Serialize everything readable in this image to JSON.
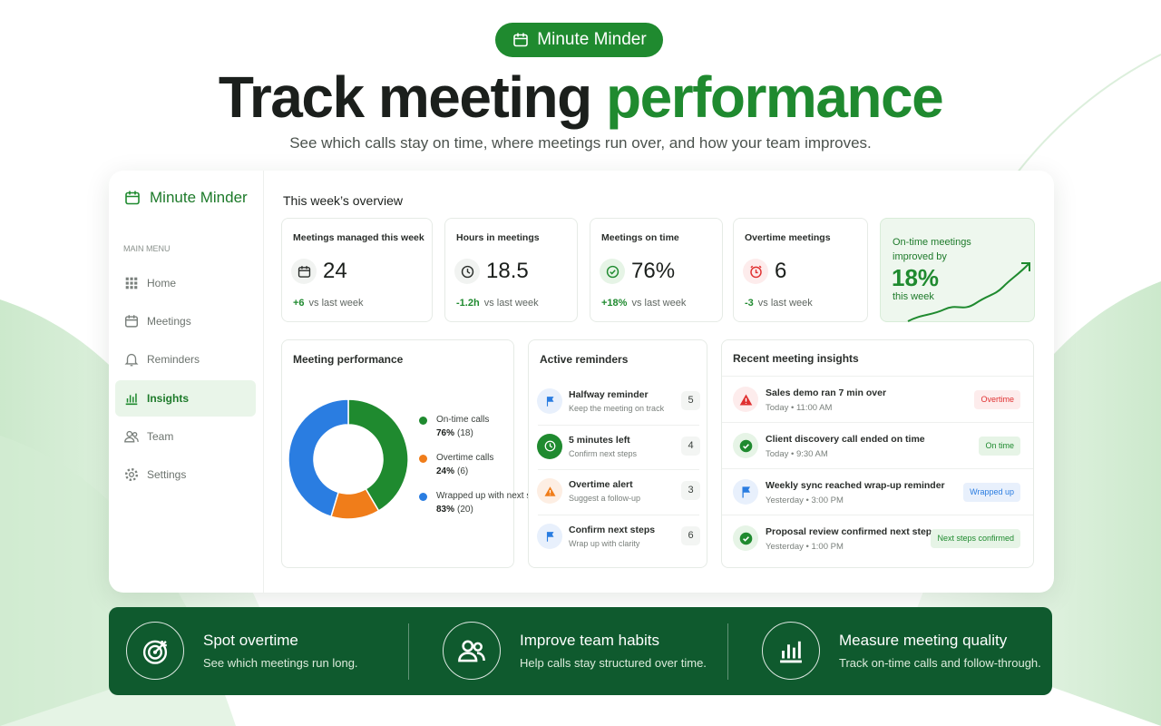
{
  "hero": {
    "brand": "Minute Minder",
    "title_start": "Track meeting",
    "title_highlight": "performance",
    "subtitle": "See which calls stay on time, where meetings run over, and how your team improves."
  },
  "sidebar": {
    "brand": "Minute Minder",
    "section": "MAIN MENU",
    "items": [
      "Home",
      "Meetings",
      "Reminders",
      "Insights",
      "Team",
      "Settings"
    ],
    "active": 3
  },
  "overview": {
    "title": "This week’s overview",
    "cards": [
      {
        "label": "Meetings managed this week",
        "value": 24,
        "change": "+6",
        "compare": "vs last week",
        "icon": "calendar"
      },
      {
        "label": "Hours in meetings",
        "value": 18.5,
        "change": "-1.2h",
        "compare": "vs last week",
        "icon": "clock"
      },
      {
        "label": "Meetings on time",
        "value": "76%",
        "change": "+18%",
        "compare": "vs last week",
        "icon": "check"
      },
      {
        "label": "Overtime meetings",
        "value": 6,
        "change": "-3",
        "compare": "vs last week",
        "icon": "alarm"
      }
    ],
    "highlight": {
      "line1": "On-time meetings",
      "line2": "improved by",
      "value": "18%",
      "line3": "this week"
    }
  },
  "performance": {
    "type": "donut",
    "title": "Meeting performance",
    "categories": [
      "On-time calls",
      "Overtime calls",
      "Wrapped up with next steps"
    ],
    "values": [
      76,
      24,
      83
    ],
    "value_labels": [
      "76%",
      "24%",
      "83%"
    ],
    "counts": [
      18,
      6,
      20
    ],
    "count_labels": [
      "(18)",
      "(6)",
      "(20)"
    ],
    "colors": [
      "#1f8a2f",
      "#f07d1a",
      "#2a7de1"
    ]
  },
  "reminders": {
    "title": "Active reminders",
    "items": [
      {
        "title": "Halfway reminder",
        "subtitle": "Keep the meeting on track",
        "count": 5,
        "icon": "flag"
      },
      {
        "title": "5 minutes left",
        "subtitle": "Confirm next steps",
        "count": 4,
        "icon": "clock"
      },
      {
        "title": "Overtime alert",
        "subtitle": "Suggest a follow-up",
        "count": 3,
        "icon": "warn"
      },
      {
        "title": "Confirm next steps",
        "subtitle": "Wrap up with clarity",
        "count": 6,
        "icon": "flag"
      }
    ]
  },
  "insights": {
    "title": "Recent meeting insights",
    "items": [
      {
        "title": "Sales demo ran 7 min over",
        "time": "Today • 11:00 AM",
        "tag": "Overtime",
        "status": "overtime"
      },
      {
        "title": "Client discovery call ended on time",
        "time": "Today • 9:30 AM",
        "tag": "On time",
        "status": "ontime"
      },
      {
        "title": "Weekly sync reached wrap-up reminder",
        "time": "Yesterday • 3:00 PM",
        "tag": "Wrapped up",
        "status": "wrapped"
      },
      {
        "title": "Proposal review confirmed next steps",
        "time": "Yesterday • 1:00 PM",
        "tag": "Next steps confirmed",
        "status": "ontime"
      }
    ]
  },
  "features": [
    {
      "title": "Spot overtime",
      "text": "See which meetings run long.",
      "icon": "target"
    },
    {
      "title": "Improve team habits",
      "text": "Help calls stay structured over time.",
      "icon": "team"
    },
    {
      "title": "Measure meeting quality",
      "text": "Track on-time calls and follow-through.",
      "icon": "bars"
    }
  ]
}
